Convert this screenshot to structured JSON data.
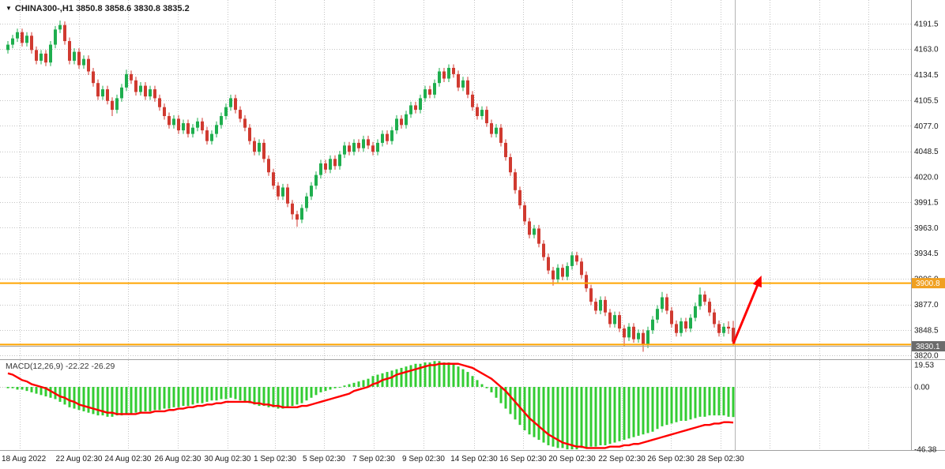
{
  "header": {
    "marker_glyph": "▼",
    "symbol_label": "CHINA300-,H1 3850.8 3858.6 3830.8 3835.2"
  },
  "chart_data": {
    "type": "candlestick",
    "symbol": "CHINA300",
    "timeframe": "H1",
    "current_ohlc": [
      3850.8,
      3858.6,
      3830.8,
      3835.2
    ],
    "colors": {
      "up": "#1EAE4E",
      "down": "#D03A30",
      "macd": "#33CC33",
      "signal": "#FF0000",
      "grid": "#C4C4C4",
      "separator": "#A0A0A0",
      "hline": "#FFA500",
      "arrow": "#FF0000",
      "axis_text": "#1A1A1A"
    },
    "price_ticks": [
      "4191.5",
      "4163.0",
      "4134.5",
      "4105.5",
      "4077.0",
      "4048.5",
      "4020.0",
      "3991.5",
      "3963.0",
      "3934.5",
      "3906.0",
      "3877.0",
      "3848.5",
      "3820.0"
    ],
    "x_labels": [
      "18 Aug 2022",
      "22 Aug 02:30",
      "24 Aug 02:30",
      "26 Aug 02:30",
      "30 Aug 02:30",
      "1 Sep 02:30",
      "5 Sep 02:30",
      "7 Sep 02:30",
      "9 Sep 02:30",
      "14 Sep 02:30",
      "16 Sep 02:30",
      "20 Sep 02:30",
      "22 Sep 02:30",
      "26 Sep 02:30",
      "28 Sep 02:30"
    ],
    "hlines": [
      {
        "price": 3900.8,
        "color": "#FFA500",
        "width": 2,
        "badge": "3900.8",
        "badge_bg": "#F0A020"
      },
      {
        "price": 3832.0,
        "color": "#FFA500",
        "width": 2
      },
      {
        "price": 3830.1,
        "color": "#9E9E9E",
        "width": 1,
        "badge": "3830.1",
        "badge_bg": "#6B6B6B"
      }
    ],
    "arrow": {
      "from_bar": 153,
      "from_price": 3833,
      "to_bar": 158.7,
      "to_price": 3906,
      "color": "#FF0000"
    },
    "candles": [
      [
        4162,
        4172,
        4158,
        4168
      ],
      [
        4168,
        4179,
        4164,
        4175
      ],
      [
        4175,
        4186,
        4171,
        4182
      ],
      [
        4182,
        4186,
        4166,
        4170
      ],
      [
        4170,
        4182,
        4166,
        4178
      ],
      [
        4178,
        4182,
        4158,
        4162
      ],
      [
        4162,
        4166,
        4146,
        4150
      ],
      [
        4150,
        4162,
        4146,
        4158
      ],
      [
        4158,
        4162,
        4144,
        4148
      ],
      [
        4148,
        4172,
        4144,
        4168
      ],
      [
        4168,
        4189,
        4164,
        4185
      ],
      [
        4185,
        4195,
        4181,
        4190
      ],
      [
        4190,
        4194,
        4168,
        4172
      ],
      [
        4172,
        4176,
        4146,
        4150
      ],
      [
        4150,
        4164,
        4146,
        4160
      ],
      [
        4160,
        4164,
        4141,
        4145
      ],
      [
        4145,
        4156,
        4141,
        4152
      ],
      [
        4152,
        4156,
        4134,
        4138
      ],
      [
        4138,
        4142,
        4121,
        4125
      ],
      [
        4125,
        4129,
        4106,
        4110
      ],
      [
        4110,
        4122,
        4106,
        4118
      ],
      [
        4118,
        4122,
        4101,
        4105
      ],
      [
        4105,
        4109,
        4088,
        4095
      ],
      [
        4095,
        4112,
        4091,
        4108
      ],
      [
        4108,
        4124,
        4104,
        4120
      ],
      [
        4120,
        4140,
        4116,
        4135
      ],
      [
        4135,
        4139,
        4124,
        4128
      ],
      [
        4128,
        4132,
        4111,
        4115
      ],
      [
        4115,
        4126,
        4111,
        4122
      ],
      [
        4122,
        4126,
        4106,
        4110
      ],
      [
        4110,
        4122,
        4106,
        4118
      ],
      [
        4118,
        4122,
        4104,
        4108
      ],
      [
        4108,
        4112,
        4094,
        4098
      ],
      [
        4098,
        4102,
        4084,
        4088
      ],
      [
        4088,
        4092,
        4074,
        4078
      ],
      [
        4078,
        4089,
        4074,
        4085
      ],
      [
        4085,
        4089,
        4068,
        4072
      ],
      [
        4072,
        4084,
        4068,
        4080
      ],
      [
        4080,
        4084,
        4064,
        4068
      ],
      [
        4068,
        4079,
        4064,
        4075
      ],
      [
        4075,
        4086,
        4071,
        4082
      ],
      [
        4082,
        4086,
        4068,
        4072
      ],
      [
        4072,
        4076,
        4056,
        4060
      ],
      [
        4060,
        4072,
        4056,
        4068
      ],
      [
        4068,
        4082,
        4064,
        4078
      ],
      [
        4078,
        4092,
        4074,
        4088
      ],
      [
        4088,
        4102,
        4084,
        4098
      ],
      [
        4098,
        4112,
        4094,
        4108
      ],
      [
        4108,
        4112,
        4091,
        4095
      ],
      [
        4095,
        4099,
        4081,
        4085
      ],
      [
        4085,
        4089,
        4071,
        4075
      ],
      [
        4075,
        4079,
        4056,
        4060
      ],
      [
        4060,
        4064,
        4044,
        4048
      ],
      [
        4048,
        4062,
        4044,
        4058
      ],
      [
        4058,
        4062,
        4036,
        4040
      ],
      [
        4040,
        4044,
        4021,
        4025
      ],
      [
        4025,
        4029,
        4006,
        4010
      ],
      [
        4010,
        4014,
        3994,
        3998
      ],
      [
        3998,
        4012,
        3994,
        4008
      ],
      [
        4008,
        4012,
        3986,
        3990
      ],
      [
        3990,
        3994,
        3972,
        3978
      ],
      [
        3978,
        3982,
        3964,
        3972
      ],
      [
        3972,
        3989,
        3968,
        3985
      ],
      [
        3985,
        4002,
        3981,
        3998
      ],
      [
        3998,
        4014,
        3994,
        4010
      ],
      [
        4010,
        4026,
        4006,
        4022
      ],
      [
        4022,
        4039,
        4018,
        4035
      ],
      [
        4035,
        4039,
        4024,
        4028
      ],
      [
        4028,
        4044,
        4024,
        4040
      ],
      [
        4040,
        4044,
        4028,
        4032
      ],
      [
        4032,
        4049,
        4028,
        4045
      ],
      [
        4045,
        4059,
        4041,
        4055
      ],
      [
        4055,
        4059,
        4044,
        4048
      ],
      [
        4048,
        4062,
        4044,
        4058
      ],
      [
        4058,
        4062,
        4048,
        4052
      ],
      [
        4052,
        4066,
        4048,
        4062
      ],
      [
        4062,
        4066,
        4051,
        4055
      ],
      [
        4055,
        4059,
        4044,
        4048
      ],
      [
        4048,
        4062,
        4044,
        4058
      ],
      [
        4058,
        4072,
        4054,
        4068
      ],
      [
        4068,
        4072,
        4056,
        4060
      ],
      [
        4060,
        4076,
        4056,
        4072
      ],
      [
        4072,
        4089,
        4068,
        4085
      ],
      [
        4085,
        4089,
        4074,
        4078
      ],
      [
        4078,
        4094,
        4074,
        4090
      ],
      [
        4090,
        4104,
        4086,
        4100
      ],
      [
        4100,
        4104,
        4091,
        4095
      ],
      [
        4095,
        4112,
        4091,
        4108
      ],
      [
        4108,
        4122,
        4104,
        4118
      ],
      [
        4118,
        4122,
        4108,
        4112
      ],
      [
        4112,
        4129,
        4108,
        4125
      ],
      [
        4125,
        4142,
        4121,
        4138
      ],
      [
        4138,
        4142,
        4126,
        4130
      ],
      [
        4130,
        4146,
        4126,
        4142
      ],
      [
        4142,
        4146,
        4131,
        4135
      ],
      [
        4135,
        4139,
        4116,
        4120
      ],
      [
        4120,
        4132,
        4116,
        4128
      ],
      [
        4128,
        4132,
        4108,
        4112
      ],
      [
        4112,
        4116,
        4094,
        4098
      ],
      [
        4098,
        4102,
        4084,
        4088
      ],
      [
        4088,
        4099,
        4084,
        4095
      ],
      [
        4095,
        4099,
        4076,
        4080
      ],
      [
        4080,
        4084,
        4064,
        4068
      ],
      [
        4068,
        4079,
        4064,
        4075
      ],
      [
        4075,
        4079,
        4054,
        4058
      ],
      [
        4058,
        4062,
        4038,
        4042
      ],
      [
        4042,
        4046,
        4021,
        4025
      ],
      [
        4025,
        4029,
        4001,
        4005
      ],
      [
        4005,
        4009,
        3984,
        3988
      ],
      [
        3988,
        3992,
        3966,
        3970
      ],
      [
        3970,
        3974,
        3951,
        3955
      ],
      [
        3955,
        3966,
        3951,
        3962
      ],
      [
        3962,
        3966,
        3941,
        3945
      ],
      [
        3945,
        3949,
        3926,
        3930
      ],
      [
        3930,
        3934,
        3911,
        3915
      ],
      [
        3915,
        3919,
        3898,
        3905
      ],
      [
        3905,
        3922,
        3901,
        3918
      ],
      [
        3918,
        3922,
        3904,
        3908
      ],
      [
        3908,
        3924,
        3904,
        3920
      ],
      [
        3920,
        3936,
        3916,
        3932
      ],
      [
        3932,
        3936,
        3921,
        3925
      ],
      [
        3925,
        3929,
        3906,
        3910
      ],
      [
        3910,
        3914,
        3891,
        3895
      ],
      [
        3895,
        3899,
        3876,
        3880
      ],
      [
        3880,
        3884,
        3866,
        3870
      ],
      [
        3870,
        3886,
        3866,
        3882
      ],
      [
        3882,
        3886,
        3864,
        3868
      ],
      [
        3868,
        3872,
        3851,
        3855
      ],
      [
        3855,
        3869,
        3851,
        3865
      ],
      [
        3865,
        3869,
        3846,
        3850
      ],
      [
        3850,
        3854,
        3830,
        3840
      ],
      [
        3840,
        3856,
        3836,
        3852
      ],
      [
        3852,
        3856,
        3834,
        3838
      ],
      [
        3838,
        3849,
        3834,
        3845
      ],
      [
        3845,
        3849,
        3824,
        3832
      ],
      [
        3832,
        3852,
        3828,
        3848
      ],
      [
        3848,
        3864,
        3844,
        3860
      ],
      [
        3860,
        3876,
        3856,
        3872
      ],
      [
        3872,
        3891,
        3868,
        3885
      ],
      [
        3885,
        3889,
        3866,
        3870
      ],
      [
        3870,
        3874,
        3851,
        3855
      ],
      [
        3855,
        3859,
        3841,
        3845
      ],
      [
        3845,
        3862,
        3841,
        3858
      ],
      [
        3858,
        3862,
        3846,
        3850
      ],
      [
        3850,
        3866,
        3846,
        3862
      ],
      [
        3862,
        3879,
        3858,
        3875
      ],
      [
        3875,
        3896,
        3871,
        3888
      ],
      [
        3888,
        3892,
        3876,
        3880
      ],
      [
        3880,
        3884,
        3864,
        3868
      ],
      [
        3868,
        3872,
        3851,
        3855
      ],
      [
        3855,
        3859,
        3841,
        3845
      ],
      [
        3845,
        3856,
        3841,
        3852
      ],
      [
        3852,
        3858,
        3844,
        3850
      ],
      [
        3850.8,
        3858.6,
        3830.8,
        3835.2
      ]
    ],
    "macd": {
      "display_label": "MACD(12,26,9) -22.22 -26.29",
      "name": "MACD(12,26,9)",
      "main_value": -22.22,
      "signal_value": -26.29,
      "ticks": [
        "19.53",
        "0.00",
        "-46.38"
      ],
      "histogram": [
        -1,
        -1,
        -2,
        -2,
        -3,
        -4,
        -5,
        -6,
        -7,
        -8,
        -9,
        -11,
        -13,
        -15,
        -16,
        -17,
        -18,
        -19,
        -20,
        -21,
        -21,
        -22,
        -22,
        -21,
        -21,
        -20,
        -20,
        -19,
        -19,
        -18,
        -18,
        -17,
        -17,
        -16,
        -16,
        -15,
        -15,
        -14,
        -14,
        -13,
        -12,
        -12,
        -11,
        -10,
        -10,
        -9,
        -9,
        -8,
        -9,
        -10,
        -11,
        -12,
        -13,
        -14,
        -14,
        -15,
        -15,
        -16,
        -16,
        -15,
        -14,
        -13,
        -12,
        -10,
        -8,
        -6,
        -4,
        -3,
        -2,
        -1,
        0,
        1,
        2,
        3,
        4,
        5,
        6,
        8,
        9,
        10,
        11,
        12,
        13,
        14,
        15,
        16,
        17,
        17,
        18,
        18,
        19,
        19,
        18,
        18,
        17,
        15,
        13,
        11,
        8,
        5,
        2,
        -1,
        -4,
        -8,
        -12,
        -16,
        -20,
        -24,
        -28,
        -32,
        -35,
        -37,
        -39,
        -41,
        -43,
        -44,
        -45,
        -45,
        -46,
        -46,
        -46,
        -45,
        -45,
        -44,
        -44,
        -43,
        -43,
        -42,
        -41,
        -40,
        -39,
        -38,
        -37,
        -36,
        -35,
        -34,
        -33,
        -31,
        -29,
        -28,
        -27,
        -26,
        -25,
        -25,
        -24,
        -23,
        -22,
        -22,
        -21,
        -21,
        -21,
        -21,
        -22,
        -22.2
      ],
      "signal": [
        10,
        9,
        7,
        5,
        4,
        2,
        1,
        0,
        -1,
        -3,
        -5,
        -7,
        -8,
        -10,
        -11,
        -13,
        -14,
        -15,
        -16,
        -17,
        -18,
        -19,
        -19,
        -20,
        -20,
        -20,
        -20,
        -20,
        -19,
        -19,
        -19,
        -18,
        -18,
        -18,
        -17,
        -17,
        -16,
        -16,
        -15,
        -15,
        -14,
        -14,
        -13,
        -13,
        -12,
        -12,
        -11,
        -11,
        -11,
        -11,
        -11,
        -11,
        -12,
        -12,
        -13,
        -13,
        -14,
        -14,
        -15,
        -15,
        -15,
        -15,
        -14,
        -14,
        -13,
        -12,
        -11,
        -10,
        -9,
        -8,
        -7,
        -6,
        -5,
        -3,
        -2,
        -1,
        0,
        2,
        3,
        5,
        6,
        7,
        9,
        10,
        11,
        12,
        13,
        14,
        15,
        16,
        16,
        17,
        17,
        17,
        17,
        17,
        16,
        15,
        14,
        12,
        10,
        8,
        6,
        3,
        0,
        -3,
        -7,
        -11,
        -15,
        -19,
        -23,
        -26,
        -29,
        -32,
        -35,
        -37,
        -39,
        -41,
        -42,
        -43,
        -44,
        -44,
        -45,
        -45,
        -45,
        -45,
        -45,
        -44,
        -44,
        -44,
        -43,
        -43,
        -42,
        -42,
        -41,
        -40,
        -39,
        -38,
        -37,
        -36,
        -35,
        -34,
        -33,
        -32,
        -31,
        -30,
        -29,
        -28,
        -28,
        -27,
        -27,
        -26,
        -26,
        -26.3
      ]
    }
  }
}
